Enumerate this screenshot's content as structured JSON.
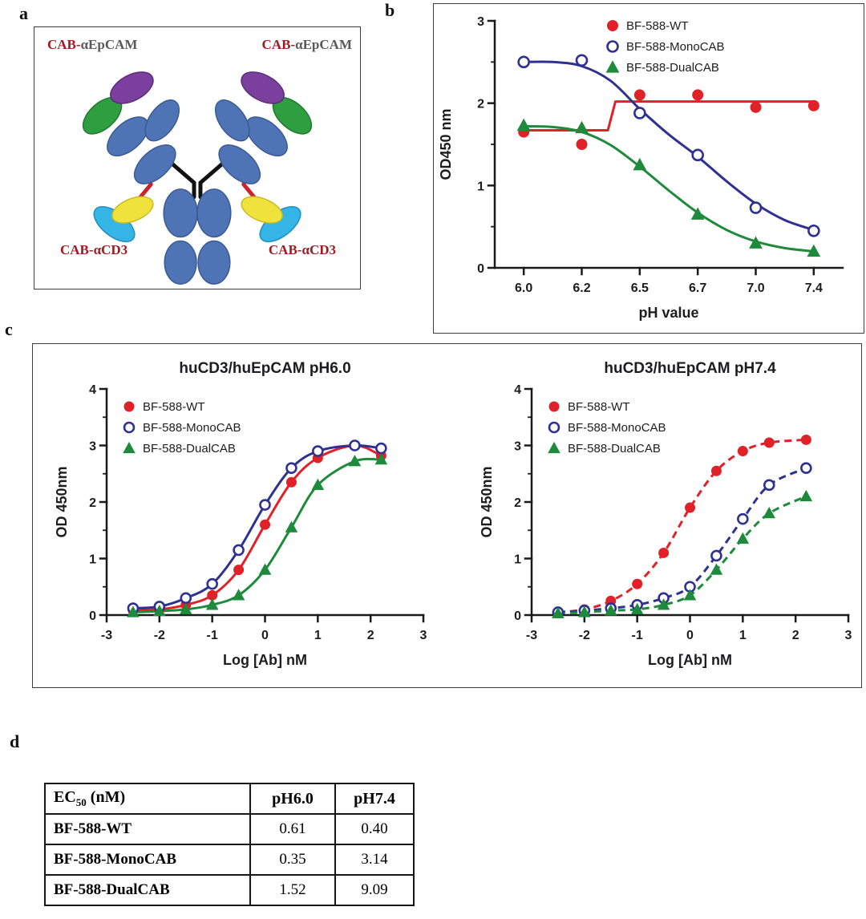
{
  "panels": {
    "a": {
      "label": "a",
      "labels": {
        "top_left": {
          "prefix": "CAB-",
          "suffix": "αEpCAM"
        },
        "top_right": {
          "prefix": "CAB-",
          "suffix": "αEpCAM"
        },
        "bottom_left": {
          "prefix": "CAB-",
          "suffix": "αCD3"
        },
        "bottom_right": {
          "prefix": "CAB-",
          "suffix": "αCD3"
        }
      },
      "colors": {
        "blue": "#4f74b5",
        "green": "#2f9e41",
        "purple": "#7b3f9d",
        "yellow": "#f0e23c",
        "cyan": "#35b5e5",
        "linker_red": "#cc2229"
      }
    },
    "b": {
      "label": "b"
    },
    "c": {
      "label": "c"
    },
    "d": {
      "label": "d"
    }
  },
  "chart_data": [
    {
      "type": "line",
      "title": "",
      "xlabel": "pH value",
      "ylabel": "OD450 nm",
      "x_categories": [
        "6.0",
        "6.2",
        "6.5",
        "6.7",
        "7.0",
        "7.4"
      ],
      "ylim": [
        0,
        3
      ],
      "yticks": [
        0,
        1,
        2,
        3
      ],
      "dashed": false,
      "legend_position": "top-center",
      "series": [
        {
          "name": "BF-588-WT",
          "color": "#e02128",
          "marker": "circle",
          "fill": "solid",
          "step": true,
          "x": [
            0,
            1,
            2,
            3,
            4,
            5
          ],
          "y": [
            1.65,
            1.5,
            2.1,
            2.1,
            1.95,
            1.97
          ],
          "line_x": [
            0,
            1.45,
            1.58,
            5
          ],
          "line_y": [
            1.67,
            1.67,
            2.02,
            2.02
          ]
        },
        {
          "name": "BF-588-MonoCAB",
          "color": "#2e3192",
          "marker": "circle",
          "fill": "open",
          "x": [
            0,
            1,
            2,
            3,
            4,
            5
          ],
          "y": [
            2.5,
            2.52,
            1.88,
            1.37,
            0.73,
            0.45
          ],
          "line_x": [
            0,
            0.5,
            1,
            1.5,
            2,
            2.5,
            3,
            3.5,
            4,
            4.5,
            5
          ],
          "line_y": [
            2.5,
            2.5,
            2.45,
            2.27,
            1.93,
            1.62,
            1.35,
            1.05,
            0.78,
            0.58,
            0.46
          ]
        },
        {
          "name": "BF-588-DualCAB",
          "color": "#1e8a3c",
          "marker": "triangle",
          "fill": "solid",
          "x": [
            0,
            1,
            2,
            3,
            4,
            5
          ],
          "y": [
            1.73,
            1.7,
            1.25,
            0.65,
            0.3,
            0.2
          ],
          "line_x": [
            0,
            0.5,
            1,
            1.5,
            2,
            2.5,
            3,
            3.5,
            4,
            4.5,
            5
          ],
          "line_y": [
            1.72,
            1.71,
            1.65,
            1.49,
            1.23,
            0.94,
            0.67,
            0.46,
            0.32,
            0.24,
            0.2
          ]
        }
      ]
    },
    {
      "type": "line",
      "title": "huCD3/huEpCAM pH6.0",
      "xlabel": "Log [Ab] nM",
      "ylabel": "OD 450nm",
      "xlim": [
        -3,
        3
      ],
      "xticks": [
        -3,
        -2,
        -1,
        0,
        1,
        2,
        3
      ],
      "ylim": [
        0,
        4
      ],
      "yticks": [
        0,
        1,
        2,
        3,
        4
      ],
      "dashed": false,
      "legend_position": "top-left",
      "series": [
        {
          "name": "BF-588-WT",
          "color": "#e02128",
          "marker": "circle",
          "fill": "solid",
          "x": [
            -2.5,
            -2,
            -1.5,
            -1,
            -0.5,
            0,
            0.5,
            1,
            1.7,
            2.2
          ],
          "y": [
            0.08,
            0.1,
            0.18,
            0.35,
            0.8,
            1.6,
            2.35,
            2.78,
            3.0,
            2.82
          ]
        },
        {
          "name": "BF-588-MonoCAB",
          "color": "#2e3192",
          "marker": "circle",
          "fill": "open",
          "x": [
            -2.5,
            -2,
            -1.5,
            -1,
            -0.5,
            0,
            0.5,
            1,
            1.7,
            2.2
          ],
          "y": [
            0.12,
            0.15,
            0.3,
            0.55,
            1.15,
            1.95,
            2.6,
            2.9,
            3.0,
            2.95
          ]
        },
        {
          "name": "BF-588-DualCAB",
          "color": "#1e8a3c",
          "marker": "triangle",
          "fill": "solid",
          "x": [
            -2.5,
            -2,
            -1.5,
            -1,
            -0.5,
            0,
            0.5,
            1,
            1.7,
            2.2
          ],
          "y": [
            0.05,
            0.07,
            0.1,
            0.18,
            0.35,
            0.8,
            1.55,
            2.3,
            2.72,
            2.75
          ]
        }
      ]
    },
    {
      "type": "line",
      "title": "huCD3/huEpCAM pH7.4",
      "xlabel": "Log [Ab] nM",
      "ylabel": "OD 450nm",
      "xlim": [
        -3,
        3
      ],
      "xticks": [
        -3,
        -2,
        -1,
        0,
        1,
        2,
        3
      ],
      "ylim": [
        0,
        4
      ],
      "yticks": [
        0,
        1,
        2,
        3,
        4
      ],
      "dashed": true,
      "legend_position": "top-left",
      "series": [
        {
          "name": "BF-588-WT",
          "color": "#e02128",
          "marker": "circle",
          "fill": "solid",
          "x": [
            -2.5,
            -2,
            -1.5,
            -1,
            -0.5,
            0,
            0.5,
            1,
            1.5,
            2.2
          ],
          "y": [
            0.05,
            0.1,
            0.25,
            0.55,
            1.1,
            1.9,
            2.55,
            2.9,
            3.05,
            3.1
          ]
        },
        {
          "name": "BF-588-MonoCAB",
          "color": "#2e3192",
          "marker": "circle",
          "fill": "open",
          "x": [
            -2.5,
            -2,
            -1.5,
            -1,
            -0.5,
            0,
            0.5,
            1,
            1.5,
            2.2
          ],
          "y": [
            0.05,
            0.08,
            0.12,
            0.18,
            0.3,
            0.5,
            1.05,
            1.7,
            2.3,
            2.6
          ]
        },
        {
          "name": "BF-588-DualCAB",
          "color": "#1e8a3c",
          "marker": "triangle",
          "fill": "solid",
          "x": [
            -2.5,
            -2,
            -1.5,
            -1,
            -0.5,
            0,
            0.5,
            1,
            1.5,
            2.2
          ],
          "y": [
            0.03,
            0.05,
            0.08,
            0.1,
            0.18,
            0.35,
            0.8,
            1.35,
            1.8,
            2.1
          ]
        }
      ]
    }
  ],
  "table": {
    "header": {
      "col1_main": "EC",
      "col1_sub": "50",
      "col1_rest": " (nM)",
      "col2": "pH6.0",
      "col3": "pH7.4"
    },
    "rows": [
      {
        "name": "BF-588-WT",
        "ph6": "0.61",
        "ph74": "0.40"
      },
      {
        "name": "BF-588-MonoCAB",
        "ph6": "0.35",
        "ph74": "3.14"
      },
      {
        "name": "BF-588-DualCAB",
        "ph6": "1.52",
        "ph74": "9.09"
      }
    ]
  }
}
